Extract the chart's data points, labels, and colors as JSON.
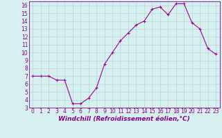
{
  "x": [
    0,
    1,
    2,
    3,
    4,
    5,
    6,
    7,
    8,
    9,
    10,
    11,
    12,
    13,
    14,
    15,
    16,
    17,
    18,
    19,
    20,
    21,
    22,
    23
  ],
  "y": [
    7,
    7,
    7,
    6.5,
    6.5,
    3.5,
    3.5,
    4.2,
    5.5,
    8.5,
    10,
    11.5,
    12.5,
    13.5,
    14,
    15.5,
    15.8,
    14.8,
    16.2,
    16.2,
    13.8,
    13,
    10.5,
    9.8
  ],
  "line_color": "#990099",
  "marker": "+",
  "marker_color": "#990099",
  "bg_color": "#d6f0f0",
  "grid_color": "#b8d4d4",
  "xlabel": "Windchill (Refroidissement éolien,°C)",
  "xlim": [
    -0.5,
    23.5
  ],
  "ylim": [
    3,
    16.5
  ],
  "yticks": [
    3,
    4,
    5,
    6,
    7,
    8,
    9,
    10,
    11,
    12,
    13,
    14,
    15,
    16
  ],
  "xticks": [
    0,
    1,
    2,
    3,
    4,
    5,
    6,
    7,
    8,
    9,
    10,
    11,
    12,
    13,
    14,
    15,
    16,
    17,
    18,
    19,
    20,
    21,
    22,
    23
  ],
  "tick_label_fontsize": 5.5,
  "xlabel_fontsize": 6.5,
  "axis_label_color": "#880088",
  "tick_color": "#880088",
  "spine_color": "#880088",
  "linewidth": 0.8,
  "markersize": 3.5,
  "markeredgewidth": 0.8
}
